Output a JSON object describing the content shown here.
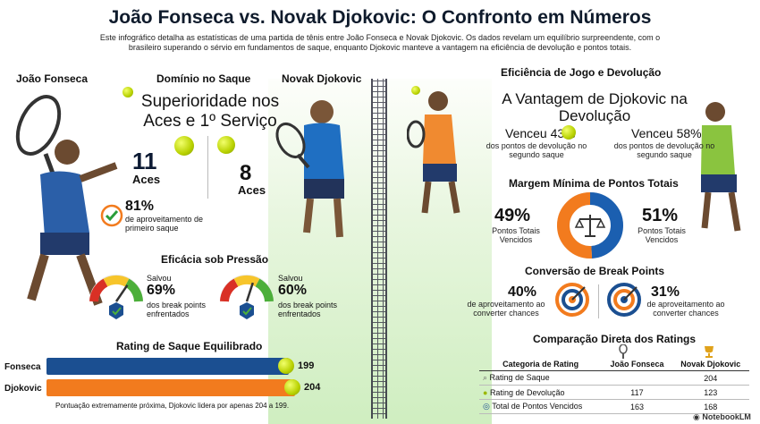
{
  "header": {
    "title": "João Fonseca vs. Novak Djokovic: O Confronto em Números",
    "subtitle": "Este infográfico detalha as estatísticas de uma partida de tênis entre João Fonseca e Novak Djokovic. Os dados revelam um equilíbrio surpreendente, com o brasileiro superando o sérvio em fundamentos de saque, enquanto Djokovic manteve a vantagem na eficiência de devolução e pontos totais."
  },
  "players": {
    "left": "João Fonseca",
    "right": "Novak Djokovic"
  },
  "serve": {
    "section": "Domínio no Saque",
    "headline": "Superioridade nos Aces e 1º Serviço",
    "fonseca_aces": "11",
    "fonseca_aces_label": "Aces",
    "djokovic_aces": "8",
    "djokovic_aces_label": "Aces",
    "first_serve_pct": "81%",
    "first_serve_label": "de aproveitamento de primeiro saque"
  },
  "pressure": {
    "section": "Eficácia sob Pressão",
    "fonseca": {
      "prefix": "Salvou",
      "value": "69%",
      "label": "dos break points enfrentados",
      "level": 0.69
    },
    "djokovic": {
      "prefix": "Salvou",
      "value": "60%",
      "label": "dos break points enfrentados",
      "level": 0.6
    }
  },
  "serve_rating": {
    "section": "Rating de Saque Equilibrado",
    "note": "Pontuação extremamente próxima, Djokovic lidera por apenas 204 a 199.",
    "rows": [
      {
        "name": "Fonseca",
        "value": "199",
        "num": 199,
        "color": "#1b4f91"
      },
      {
        "name": "Djokovic",
        "value": "204",
        "num": 204,
        "color": "#f27b1e"
      }
    ]
  },
  "return": {
    "section": "Eficiência de Jogo e Devolução",
    "headline": "A Vantagem de Djokovic na Devolução",
    "fonseca_value": "Venceu 43%",
    "fonseca_label": "dos pontos de devolução no segundo saque",
    "djokovic_value": "Venceu 58%",
    "djokovic_label": "dos pontos de devolução no segundo saque"
  },
  "total_points": {
    "section": "Margem Mínima de Pontos Totais",
    "fonseca_pct": "49%",
    "fonseca_label": "Pontos Totais Vencidos",
    "djokovic_pct": "51%",
    "djokovic_label": "Pontos Totais Vencidos",
    "fonseca_share": 49,
    "djokovic_share": 51,
    "colors": {
      "fonseca": "#1b5fb0",
      "djokovic": "#f27b1e"
    }
  },
  "break_points": {
    "section": "Conversão de Break Points",
    "fonseca_pct": "40%",
    "fonseca_label": "de aproveitamento ao converter chances",
    "djokovic_pct": "31%",
    "djokovic_label": "de aproveitamento ao converter chances"
  },
  "comparison": {
    "section": "Comparação Direta dos Ratings",
    "headers": [
      "Categoria de Rating",
      "João Fonseca",
      "Novak Djokovic"
    ],
    "rows": [
      {
        "cat": "Rating de Saque",
        "a": "",
        "b": "204"
      },
      {
        "cat": "Rating de Devolução",
        "a": "117",
        "b": "123"
      },
      {
        "cat": "Total de Pontos Vencidos",
        "a": "163",
        "b": "168"
      }
    ]
  },
  "brand": "NotebookLM",
  "icons": [
    "tennis-ball-icon",
    "checkmark-icon",
    "shield-check-icon",
    "gauge-icon",
    "scales-icon",
    "target-icon",
    "racket-icon",
    "trophy-icon"
  ]
}
